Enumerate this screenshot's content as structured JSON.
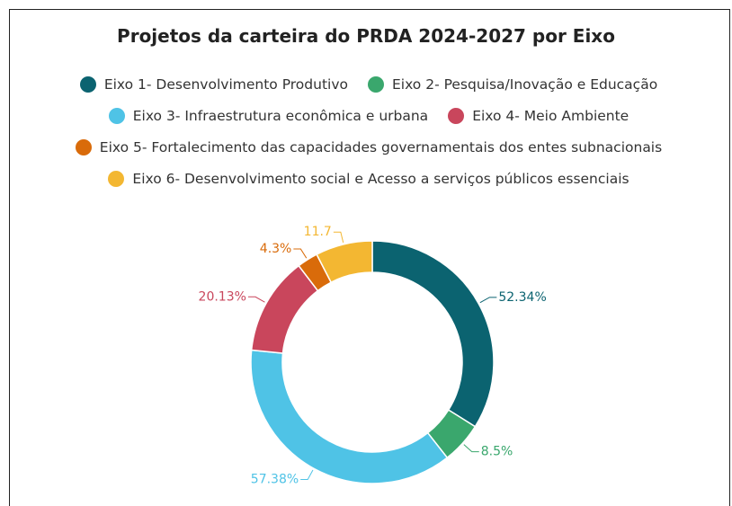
{
  "chart_data": {
    "type": "donut",
    "title": "Projetos da carteira do PRDA 2024-2027 por Eixo",
    "categories": [
      "Eixo 1- Desenvolvimento Produtivo",
      "Eixo 2- Pesquisa/Inovação e Educação",
      "Eixo 3- Infraestrutura econômica e urbana",
      "Eixo 4- Meio Ambiente",
      "Eixo 5- Fortalecimento das capacidades governamentais dos entes subnacionais",
      "Eixo 6- Desenvolvimento social e Acesso a serviços públicos essenciais"
    ],
    "values": [
      52.34,
      8.5,
      57.38,
      20.13,
      4.3,
      11.7
    ],
    "value_labels": [
      "52.34%",
      "8.5%",
      "57.38%",
      "20.13%",
      "4.3%",
      "11.7"
    ],
    "colors": [
      "#0b6370",
      "#3aa76d",
      "#4fc3e6",
      "#c9465c",
      "#d96b0a",
      "#f3b732"
    ],
    "legend": "top"
  }
}
